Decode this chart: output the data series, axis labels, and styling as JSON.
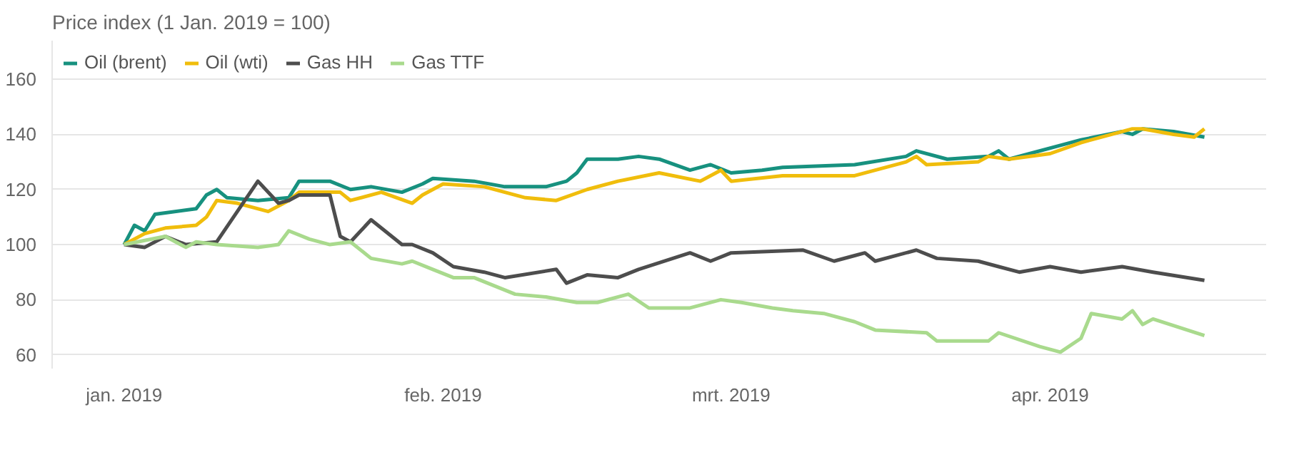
{
  "chart_data": {
    "type": "line",
    "title": "Price index (1 Jan. 2019 = 100)",
    "xlim": [
      "2018-12-25",
      "2019-04-22"
    ],
    "ylim": [
      55,
      174
    ],
    "yticks": [
      60,
      80,
      100,
      120,
      140,
      160
    ],
    "xticks": [
      {
        "value": "2019-01-01",
        "label": "jan. 2019"
      },
      {
        "value": "2019-02-01",
        "label": "feb. 2019"
      },
      {
        "value": "2019-03-01",
        "label": "mrt. 2019"
      },
      {
        "value": "2019-04-01",
        "label": "apr. 2019"
      }
    ],
    "grid": "y",
    "legend": "top left",
    "series": [
      {
        "name": "Oil (brent)",
        "color": "#17917f",
        "x": [
          "2019-01-01",
          "2019-01-02",
          "2019-01-03",
          "2019-01-04",
          "2019-01-08",
          "2019-01-09",
          "2019-01-10",
          "2019-01-11",
          "2019-01-14",
          "2019-01-17",
          "2019-01-18",
          "2019-01-21",
          "2019-01-23",
          "2019-01-25",
          "2019-01-28",
          "2019-01-30",
          "2019-01-31",
          "2019-02-04",
          "2019-02-07",
          "2019-02-11",
          "2019-02-13",
          "2019-02-14",
          "2019-02-15",
          "2019-02-18",
          "2019-02-20",
          "2019-02-22",
          "2019-02-25",
          "2019-02-27",
          "2019-03-01",
          "2019-03-04",
          "2019-03-06",
          "2019-03-13",
          "2019-03-18",
          "2019-03-19",
          "2019-03-22",
          "2019-03-26",
          "2019-03-27",
          "2019-03-28",
          "2019-03-30",
          "2019-04-02",
          "2019-04-04",
          "2019-04-08",
          "2019-04-09",
          "2019-04-10",
          "2019-04-13",
          "2019-04-16"
        ],
        "values": [
          100,
          107,
          105,
          111,
          113,
          118,
          120,
          117,
          116,
          117,
          123,
          123,
          120,
          121,
          119,
          122,
          124,
          123,
          121,
          121,
          123,
          126,
          131,
          131,
          132,
          131,
          127,
          129,
          126,
          127,
          128,
          129,
          132,
          134,
          131,
          132,
          134,
          131,
          133,
          136,
          138,
          141,
          140,
          142,
          141,
          139
        ]
      },
      {
        "name": "Oil (wti)",
        "color": "#f0bd0c",
        "x": [
          "2019-01-01",
          "2019-01-03",
          "2019-01-05",
          "2019-01-08",
          "2019-01-09",
          "2019-01-10",
          "2019-01-12",
          "2019-01-15",
          "2019-01-17",
          "2019-01-18",
          "2019-01-22",
          "2019-01-23",
          "2019-01-26",
          "2019-01-29",
          "2019-01-30",
          "2019-02-01",
          "2019-02-05",
          "2019-02-09",
          "2019-02-12",
          "2019-02-15",
          "2019-02-18",
          "2019-02-22",
          "2019-02-26",
          "2019-02-28",
          "2019-03-01",
          "2019-03-06",
          "2019-03-13",
          "2019-03-18",
          "2019-03-19",
          "2019-03-20",
          "2019-03-25",
          "2019-03-26",
          "2019-03-28",
          "2019-04-01",
          "2019-04-04",
          "2019-04-09",
          "2019-04-10",
          "2019-04-13",
          "2019-04-15",
          "2019-04-16"
        ],
        "values": [
          100,
          104,
          106,
          107,
          110,
          116,
          115,
          112,
          116,
          119,
          119,
          116,
          119,
          115,
          118,
          122,
          121,
          117,
          116,
          120,
          123,
          126,
          123,
          127,
          123,
          125,
          125,
          130,
          132,
          129,
          130,
          132,
          131,
          133,
          137,
          142,
          142,
          140,
          139,
          142
        ]
      },
      {
        "name": "Gas HH",
        "color": "#4d4d4d",
        "x": [
          "2019-01-01",
          "2019-01-03",
          "2019-01-05",
          "2019-01-07",
          "2019-01-10",
          "2019-01-14",
          "2019-01-16",
          "2019-01-17",
          "2019-01-18",
          "2019-01-21",
          "2019-01-22",
          "2019-01-23",
          "2019-01-25",
          "2019-01-28",
          "2019-01-29",
          "2019-01-31",
          "2019-02-02",
          "2019-02-05",
          "2019-02-07",
          "2019-02-12",
          "2019-02-13",
          "2019-02-15",
          "2019-02-18",
          "2019-02-20",
          "2019-02-25",
          "2019-02-27",
          "2019-03-01",
          "2019-03-08",
          "2019-03-11",
          "2019-03-13",
          "2019-03-14",
          "2019-03-15",
          "2019-03-19",
          "2019-03-21",
          "2019-03-25",
          "2019-03-27",
          "2019-03-29",
          "2019-04-01",
          "2019-04-04",
          "2019-04-08",
          "2019-04-11",
          "2019-04-16"
        ],
        "values": [
          100,
          99,
          103,
          100,
          101,
          123,
          115,
          116,
          118,
          118,
          103,
          101,
          109,
          100,
          100,
          97,
          92,
          90,
          88,
          91,
          86,
          89,
          88,
          91,
          97,
          94,
          97,
          98,
          94,
          96,
          97,
          94,
          98,
          95,
          94,
          92,
          90,
          92,
          90,
          92,
          90,
          87
        ]
      },
      {
        "name": "Gas TTF",
        "color": "#a9da8d",
        "x": [
          "2019-01-01",
          "2019-01-05",
          "2019-01-07",
          "2019-01-08",
          "2019-01-10",
          "2019-01-14",
          "2019-01-16",
          "2019-01-17",
          "2019-01-19",
          "2019-01-21",
          "2019-01-23",
          "2019-01-25",
          "2019-01-28",
          "2019-01-29",
          "2019-01-31",
          "2019-02-02",
          "2019-02-04",
          "2019-02-08",
          "2019-02-11",
          "2019-02-14",
          "2019-02-16",
          "2019-02-19",
          "2019-02-21",
          "2019-02-25",
          "2019-02-28",
          "2019-03-02",
          "2019-03-05",
          "2019-03-07",
          "2019-03-10",
          "2019-03-13",
          "2019-03-15",
          "2019-03-20",
          "2019-03-21",
          "2019-03-26",
          "2019-03-27",
          "2019-03-31",
          "2019-04-02",
          "2019-04-04",
          "2019-04-05",
          "2019-04-08",
          "2019-04-09",
          "2019-04-10",
          "2019-04-11",
          "2019-04-16"
        ],
        "values": [
          100,
          103,
          99,
          101,
          100,
          99,
          100,
          105,
          102,
          100,
          101,
          95,
          93,
          94,
          91,
          88,
          88,
          82,
          81,
          79,
          79,
          82,
          77,
          77,
          80,
          79,
          77,
          76,
          75,
          72,
          69,
          68,
          65,
          65,
          68,
          63,
          61,
          66,
          75,
          73,
          76,
          71,
          73,
          67
        ]
      }
    ]
  }
}
